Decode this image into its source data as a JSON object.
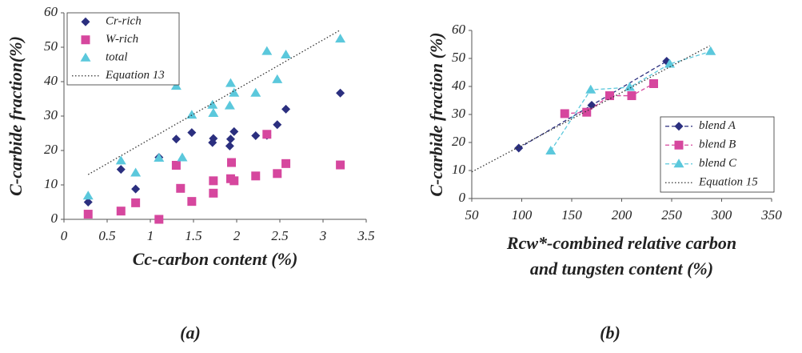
{
  "chart_data": [
    {
      "type": "scatter",
      "caption": "(a)",
      "xlabel": [
        "Cc-carbon content (%)"
      ],
      "ylabel": "C-carbide fraction(%)",
      "xlim": [
        0,
        3.5
      ],
      "xticks": [
        0,
        0.5,
        1,
        1.5,
        2,
        2.5,
        3,
        3.5
      ],
      "ylim": [
        0,
        60
      ],
      "yticks": [
        0,
        10,
        20,
        30,
        40,
        50,
        60
      ],
      "legend": "upper left",
      "series": [
        {
          "name": "Cr-rich",
          "color": "#2b2f7f",
          "marker": "diamond",
          "line": "none",
          "x": [
            0.28,
            0.66,
            0.83,
            1.1,
            1.3,
            1.48,
            1.72,
            1.73,
            1.92,
            1.93,
            1.97,
            2.22,
            2.35,
            2.47,
            2.57,
            3.2
          ],
          "values": [
            5,
            14.5,
            8.8,
            18,
            23.3,
            25.2,
            22.3,
            23.5,
            21.3,
            23.3,
            25.5,
            24.3,
            24.4,
            27.5,
            32,
            36.7
          ]
        },
        {
          "name": "W-rich",
          "color": "#d6479e",
          "marker": "square",
          "line": "none",
          "x": [
            0.28,
            0.66,
            0.83,
            1.1,
            1.3,
            1.35,
            1.48,
            1.73,
            1.73,
            1.93,
            1.94,
            1.97,
            2.22,
            2.35,
            2.47,
            2.57,
            3.2
          ],
          "values": [
            1.5,
            2.4,
            4.8,
            0,
            15.7,
            9,
            5.2,
            11.2,
            7.6,
            11.8,
            16.5,
            11.2,
            12.6,
            24.7,
            13.3,
            16.2,
            15.8
          ]
        },
        {
          "name": "total",
          "color": "#5bc8dc",
          "marker": "triangle",
          "line": "none",
          "x": [
            0.28,
            0.66,
            0.83,
            1.1,
            1.3,
            1.37,
            1.48,
            1.72,
            1.73,
            1.92,
            1.93,
            1.97,
            2.22,
            2.35,
            2.47,
            2.57,
            3.2
          ],
          "values": [
            6.8,
            17,
            13.5,
            17.8,
            38.7,
            17.9,
            30.3,
            33.2,
            30.8,
            33,
            39.5,
            36.7,
            36.7,
            48.8,
            40.6,
            47.8,
            52.4
          ]
        },
        {
          "name": "Equation 13",
          "color": "#333333",
          "marker": "none",
          "line": "dotted",
          "x": [
            0.28,
            3.2
          ],
          "values": [
            13,
            55
          ]
        }
      ]
    },
    {
      "type": "line",
      "caption": "(b)",
      "xlabel": [
        "Rcw*-combined relative carbon",
        "and tungsten content (%)"
      ],
      "ylabel": "C-carbide fraction (%)",
      "xlim": [
        50,
        350
      ],
      "xticks": [
        50,
        100,
        150,
        200,
        250,
        300,
        350
      ],
      "ylim": [
        0,
        60
      ],
      "yticks": [
        0,
        10,
        20,
        30,
        40,
        50,
        60
      ],
      "legend": "lower right",
      "series": [
        {
          "name": "blend A",
          "color": "#2b2f7f",
          "marker": "diamond",
          "line": "dashed",
          "x": [
            97,
            170,
            245
          ],
          "values": [
            18,
            33.3,
            49
          ]
        },
        {
          "name": "blend B",
          "color": "#d6479e",
          "marker": "square",
          "line": "dashed",
          "x": [
            143,
            165,
            188,
            210,
            232
          ],
          "values": [
            30.3,
            30.8,
            36.7,
            36.7,
            41
          ]
        },
        {
          "name": "blend C",
          "color": "#5bc8dc",
          "marker": "triangle",
          "line": "dashed",
          "x": [
            129,
            169,
            208,
            248,
            289
          ],
          "values": [
            17,
            38.8,
            39.7,
            48,
            52.5
          ]
        },
        {
          "name": "Equation 15",
          "color": "#333333",
          "marker": "none",
          "line": "dotted",
          "x": [
            50,
            288
          ],
          "values": [
            9.5,
            54.5
          ]
        }
      ]
    }
  ]
}
